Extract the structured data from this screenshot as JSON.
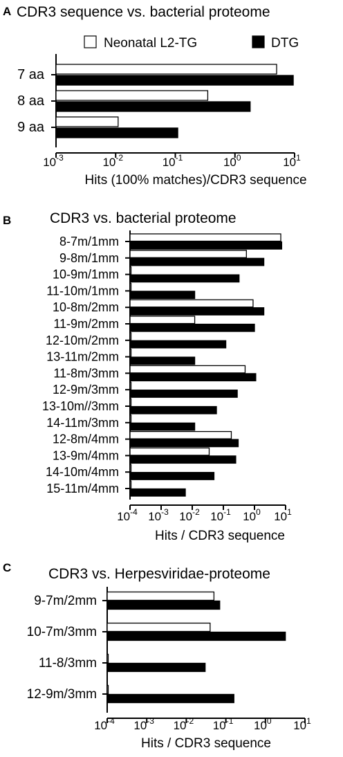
{
  "chart_data": [
    {
      "panel": "A",
      "type": "bar",
      "orientation": "horizontal",
      "title": "CDR3 sequence vs. bacterial proteome",
      "xlabel": "Hits (100% matches)/CDR3 sequence",
      "xscale": "log",
      "xlim": [
        0.001,
        10
      ],
      "xticks": [
        "-3",
        "-2",
        "-1",
        "0",
        "1"
      ],
      "categories": [
        "7 aa",
        "8 aa",
        "9 aa"
      ],
      "legend": "top",
      "series": [
        {
          "name": "Neonatal L2-TG",
          "color": "#ffffff",
          "values": [
            5,
            0.35,
            0.011
          ]
        },
        {
          "name": "DTG",
          "color": "#000000",
          "values": [
            9.5,
            1.8,
            0.11
          ]
        }
      ]
    },
    {
      "panel": "B",
      "type": "bar",
      "orientation": "horizontal",
      "title": "CDR3 vs. bacterial proteome",
      "xlabel": "Hits / CDR3 sequence",
      "xscale": "log",
      "xlim": [
        0.0001,
        10
      ],
      "xticks": [
        "-4",
        "-3",
        "-2",
        "-1",
        "0",
        "1"
      ],
      "categories": [
        "8-7m/1mm",
        "9-8m/1mm",
        "10-9m/1mm",
        "11-10m/1mm",
        "10-8m/2mm",
        "11-9m/2mm",
        "12-10m/2mm",
        "13-11m/2mm",
        "11-8m/3mm",
        "12-9m/3mm",
        "13-10m//3mm",
        "14-11m/3mm",
        "12-8m/4mm",
        "13-9m/4mm",
        "14-10m/4mm",
        "15-11m/4mm"
      ],
      "series": [
        {
          "name": "Neonatal L2-TG",
          "color": "#ffffff",
          "values": [
            7,
            0.55,
            0.0001,
            0.0001,
            0.9,
            0.012,
            0.0001,
            0.0001,
            0.5,
            0.0001,
            0.0001,
            0.0001,
            0.18,
            0.035,
            0.0001,
            0.0001
          ]
        },
        {
          "name": "DTG",
          "color": "#000000",
          "values": [
            7.5,
            2.0,
            0.32,
            0.012,
            2.0,
            1.0,
            0.12,
            0.012,
            1.1,
            0.28,
            0.06,
            0.012,
            0.3,
            0.25,
            0.05,
            0.006
          ]
        }
      ]
    },
    {
      "panel": "C",
      "type": "bar",
      "orientation": "horizontal",
      "title": "CDR3 vs. Herpesviridae-proteome",
      "xlabel": "Hits / CDR3 sequence",
      "xscale": "log",
      "xlim": [
        0.0001,
        10
      ],
      "xticks": [
        "-4",
        "-3",
        "-2",
        "-1",
        "0",
        "1"
      ],
      "categories": [
        "9-7m/2mm",
        "10-7m/3mm",
        "11-8/3mm",
        "12-9m/3mm"
      ],
      "series": [
        {
          "name": "Neonatal L2-TG",
          "color": "#ffffff",
          "values": [
            0.05,
            0.04,
            0.0001,
            0.0001
          ]
        },
        {
          "name": "DTG",
          "color": "#000000",
          "values": [
            0.07,
            3.2,
            0.03,
            0.16
          ]
        }
      ]
    }
  ],
  "panels": [
    {
      "letter": "A"
    },
    {
      "letter": "B"
    },
    {
      "letter": "C"
    }
  ]
}
